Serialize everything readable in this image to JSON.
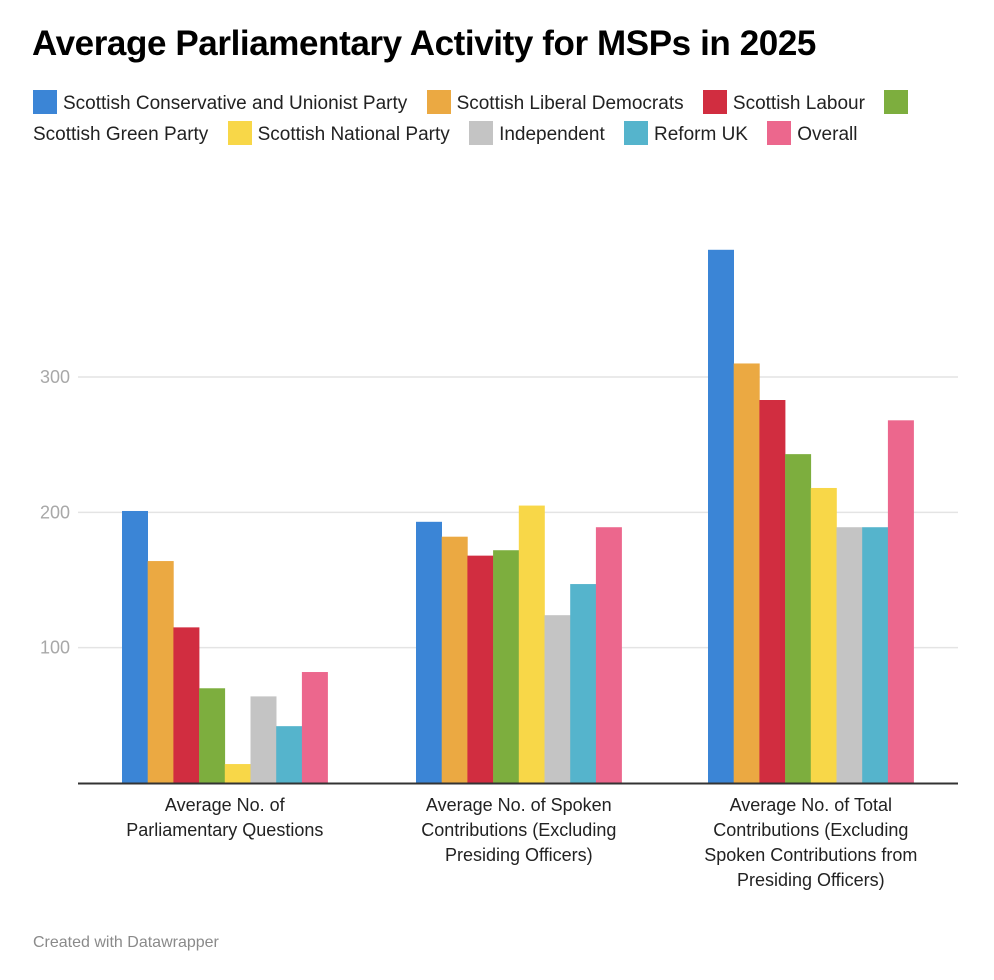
{
  "chart_data": {
    "type": "bar",
    "title": "Average Parliamentary Activity for MSPs in 2025",
    "xlabel": "",
    "ylabel": "",
    "ylim": [
      0,
      400
    ],
    "yticks": [
      100,
      200,
      300
    ],
    "grid": true,
    "legend_position": "top",
    "categories": [
      [
        "Average No. of",
        "Parliamentary Questions"
      ],
      [
        "Average No. of Spoken",
        "Contributions (Excluding",
        "Presiding Officers)"
      ],
      [
        "Average No. of Total",
        "Contributions (Excluding",
        "Spoken Contributions from",
        "Presiding Officers)"
      ]
    ],
    "series": [
      {
        "name": "Scottish Conservative and Unionist Party",
        "color": "#3b85d6",
        "values": [
          201,
          193,
          394
        ]
      },
      {
        "name": "Scottish Liberal Democrats",
        "color": "#eba942",
        "values": [
          164,
          182,
          310
        ]
      },
      {
        "name": "Scottish Labour",
        "color": "#d12d40",
        "values": [
          115,
          168,
          283
        ]
      },
      {
        "name": "Scottish Green Party",
        "color": "#7dae3e",
        "values": [
          70,
          172,
          243
        ]
      },
      {
        "name": "Scottish National Party",
        "color": "#f8d748",
        "values": [
          14,
          205,
          218
        ]
      },
      {
        "name": "Independent",
        "color": "#c4c4c4",
        "values": [
          64,
          124,
          189
        ]
      },
      {
        "name": "Reform UK",
        "color": "#55b4cc",
        "values": [
          42,
          147,
          189
        ]
      },
      {
        "name": "Overall",
        "color": "#ec678d",
        "values": [
          82,
          189,
          268
        ]
      }
    ]
  },
  "footer": "Created with Datawrapper"
}
